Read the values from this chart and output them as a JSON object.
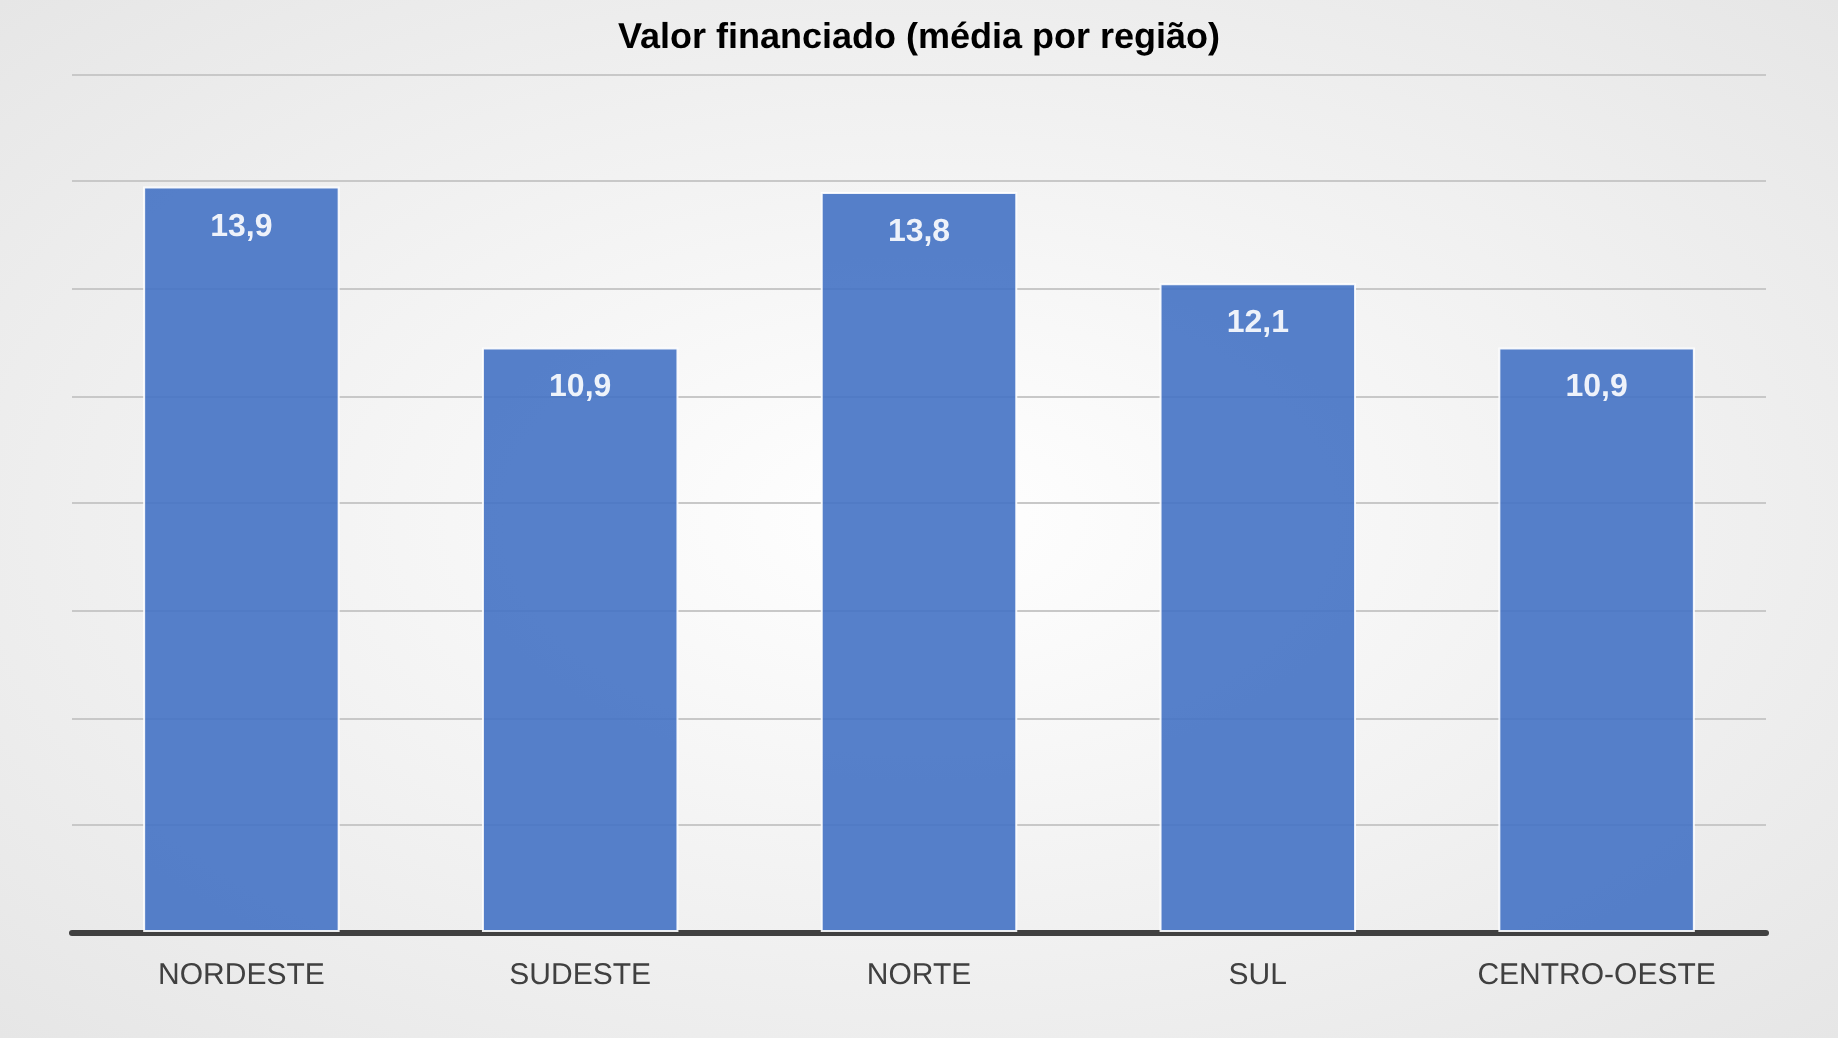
{
  "chart_data": {
    "type": "bar",
    "title": "Valor financiado (média por região)",
    "categories": [
      "NORDESTE",
      "SUDESTE",
      "NORTE",
      "SUL",
      "CENTRO-OESTE"
    ],
    "values": [
      13.9,
      10.9,
      13.8,
      12.1,
      10.9
    ],
    "color": "#4472c4",
    "value_labels": [
      "13,9",
      "10,9",
      "13,8",
      "12,1",
      "10,9"
    ],
    "ylim": [
      0,
      16
    ],
    "yticks": [
      {
        "value": 0,
        "label": null
      },
      {
        "value": 2,
        "label": null
      },
      {
        "value": 4,
        "label": null
      },
      {
        "value": 6,
        "label": null
      },
      {
        "value": 8,
        "label": null
      },
      {
        "value": 10,
        "label": null
      },
      {
        "value": 12,
        "label": null
      },
      {
        "value": 14,
        "label": null
      },
      {
        "value": 16,
        "label": null
      }
    ],
    "grid": "y",
    "tick_labels": "x"
  }
}
